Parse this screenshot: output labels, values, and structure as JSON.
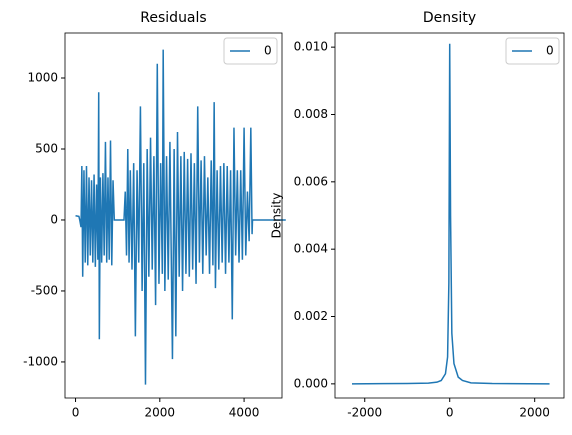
{
  "chart_data": [
    {
      "type": "line",
      "title": "Residuals",
      "legend": "upper right",
      "x": [
        0,
        80,
        100,
        130,
        150,
        170,
        200,
        230,
        260,
        290,
        320,
        350,
        380,
        410,
        440,
        470,
        500,
        530,
        550,
        565,
        590,
        620,
        650,
        680,
        710,
        740,
        770,
        800,
        830,
        860,
        890,
        920,
        1150,
        1180,
        1210,
        1240,
        1270,
        1300,
        1340,
        1380,
        1420,
        1460,
        1500,
        1540,
        1580,
        1620,
        1660,
        1700,
        1740,
        1780,
        1820,
        1860,
        1900,
        1940,
        1980,
        2020,
        2060,
        2080,
        2120,
        2160,
        2200,
        2240,
        2300,
        2340,
        2380,
        2420,
        2460,
        2500,
        2540,
        2580,
        2620,
        2660,
        2700,
        2740,
        2780,
        2820,
        2860,
        2900,
        2940,
        2980,
        3020,
        3060,
        3100,
        3140,
        3180,
        3220,
        3260,
        3290,
        3320,
        3360,
        3400,
        3440,
        3480,
        3520,
        3560,
        3600,
        3640,
        3680,
        3720,
        3760,
        3800,
        3840,
        3880,
        3920,
        3960,
        4000,
        4040,
        4080,
        4120,
        4160,
        4190,
        4200,
        4990
      ],
      "series": [
        {
          "name": "0",
          "color": "#1f77b4",
          "values": [
            30,
            25,
            0,
            -50,
            380,
            -400,
            350,
            -300,
            380,
            -320,
            300,
            -250,
            280,
            -300,
            320,
            -330,
            250,
            -280,
            900,
            -840,
            300,
            -300,
            330,
            -250,
            550,
            -300,
            300,
            -280,
            560,
            -320,
            280,
            0,
            0,
            200,
            -250,
            500,
            -300,
            350,
            -350,
            400,
            -820,
            350,
            -300,
            800,
            -500,
            400,
            -1160,
            500,
            -400,
            580,
            -350,
            450,
            -600,
            1100,
            -450,
            400,
            -380,
            1200,
            -500,
            450,
            -420,
            550,
            -980,
            500,
            -820,
            620,
            -400,
            450,
            -500,
            480,
            -380,
            430,
            -400,
            470,
            -350,
            400,
            -450,
            800,
            -300,
            420,
            -380,
            450,
            -250,
            300,
            -380,
            420,
            -320,
            830,
            -480,
            350,
            -350,
            380,
            -300,
            400,
            -380,
            380,
            -300,
            350,
            -700,
            650,
            -250,
            350,
            -300,
            350,
            -280,
            650,
            -250,
            200,
            -150,
            650,
            -100,
            0,
            0
          ]
        }
      ],
      "xlim": [
        -250,
        4900
      ],
      "ylim": [
        -1254,
        1317
      ],
      "xticks": [
        0,
        2000,
        4000
      ],
      "yticks": [
        -1000,
        -500,
        0,
        500,
        1000
      ]
    },
    {
      "type": "line",
      "title": "Density",
      "ylabel": "Density",
      "legend": "upper right",
      "x": [
        -2300,
        -1000,
        -500,
        -300,
        -200,
        -100,
        -50,
        -20,
        0,
        20,
        50,
        100,
        150,
        200,
        300,
        500,
        1000,
        2350
      ],
      "series": [
        {
          "name": "0",
          "color": "#1f77b4",
          "values": [
            0,
            1e-05,
            2e-05,
            5e-05,
            0.0001,
            0.0003,
            0.0008,
            0.003,
            0.0101,
            0.005,
            0.0015,
            0.0006,
            0.0004,
            0.0002,
            0.0001,
            3e-05,
            1e-05,
            0
          ]
        }
      ],
      "xlim": [
        -2700,
        2690
      ],
      "ylim": [
        -0.00042,
        0.01042
      ],
      "xticks": [
        -2000,
        0,
        2000
      ],
      "yticks": [
        {
          "value": 0,
          "label": "0.000"
        },
        {
          "value": 0.002,
          "label": "0.002"
        },
        {
          "value": 0.004,
          "label": "0.004"
        },
        {
          "value": 0.006,
          "label": "0.006"
        },
        {
          "value": 0.008,
          "label": "0.008"
        },
        {
          "value": 0.01,
          "label": "0.010"
        }
      ]
    }
  ]
}
